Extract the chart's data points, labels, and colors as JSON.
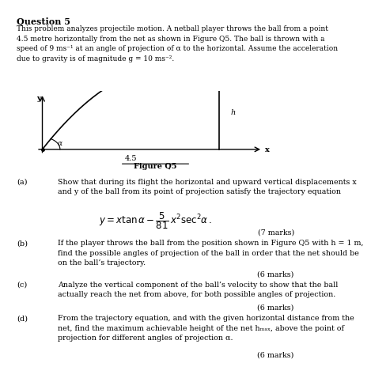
{
  "title": "Question 5",
  "intro_text": "This problem analyzes projectile motion. A netball player throws the ball from a point\n4.5 metre horizontally from the net as shown in Figure Q5. The ball is thrown with a\nspeed of 9 ms⁻¹ at an angle of projection of α to the horizontal. Assume the acceleration\ndue to gravity is of magnitude g = 10 ms⁻².",
  "figure_label": "Figure Q5",
  "parts": [
    {
      "label": "(a)",
      "text": "Show that during its flight the horizontal and upward vertical displacements x\nand y of the ball from its point of projection satisfy the trajectory equation",
      "marks": "(7 marks)"
    },
    {
      "label": "(b)",
      "text": "If the player throws the ball from the position shown in Figure Q5 with h = 1 m,\nfind the possible angles of projection of the ball in order that the net should be\non the ball’s trajectory.",
      "marks": "(6 marks)"
    },
    {
      "label": "(c)",
      "text": "Analyze the vertical component of the ball’s velocity to show that the ball\nactually reach the net from above, for both possible angles of projection.",
      "marks": "(6 marks)"
    },
    {
      "label": "(d)",
      "text": "From the trajectory equation, and with the given horizontal distance from the\nnet, find the maximum achievable height of the net hₘₐₓ, above the point of\nprojection for different angles of projection α.",
      "marks": "(6 marks)"
    }
  ],
  "bg_color": "#ffffff",
  "text_color": "#000000",
  "fig_x_label": "x",
  "fig_y_label": "y",
  "fig_h_label": "h",
  "fig_alpha_label": "α",
  "fig_45_label": "4.5",
  "alpha_deg": 62
}
